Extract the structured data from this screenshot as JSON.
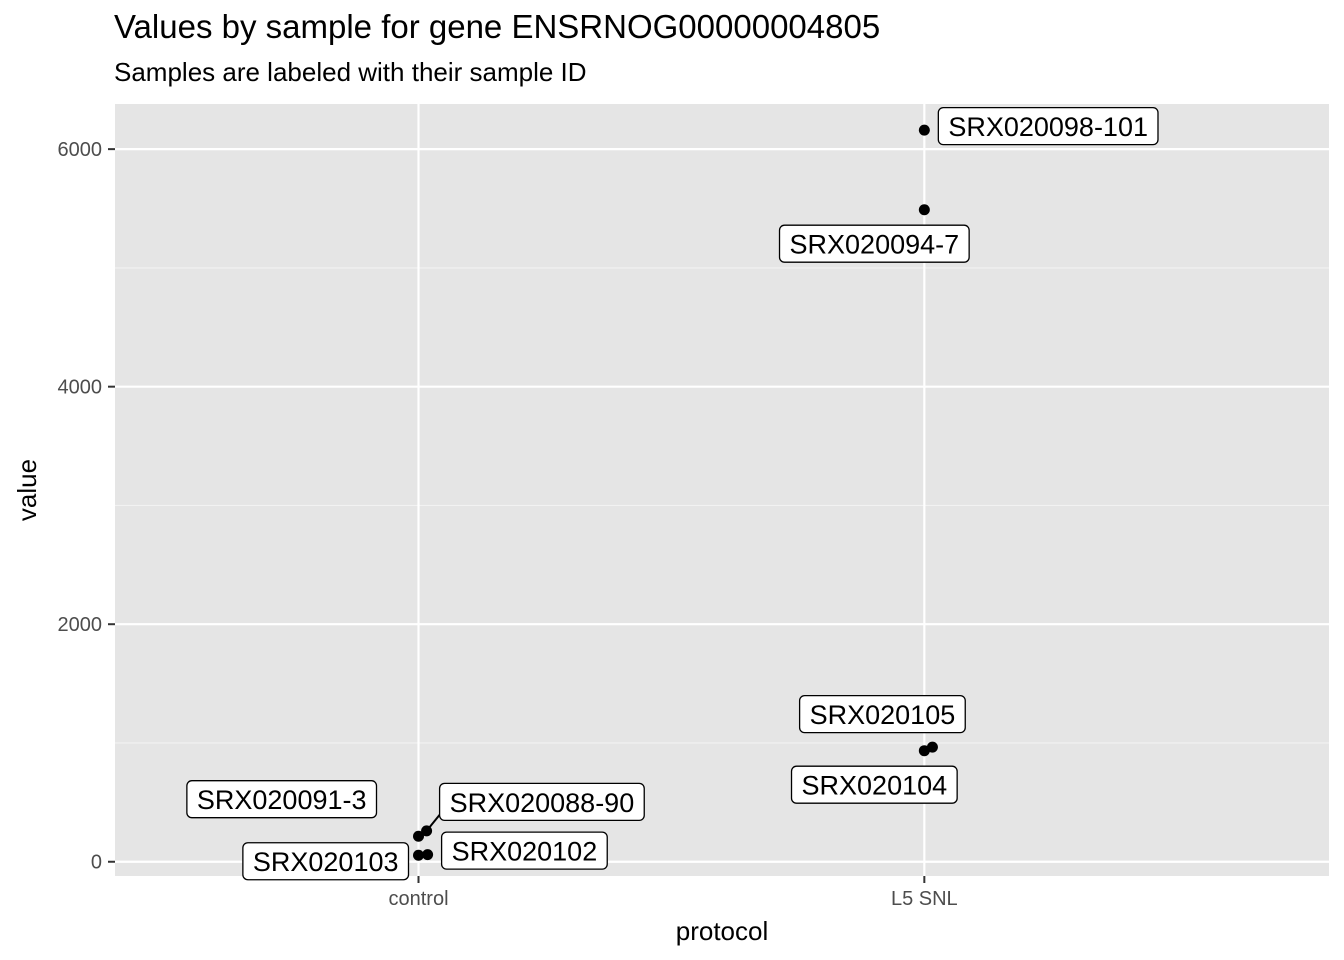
{
  "chart_data": {
    "type": "scatter",
    "title": "Values by sample for gene ENSRNOG00000004805",
    "subtitle": "Samples are labeled with their sample ID",
    "xlabel": "protocol",
    "ylabel": "value",
    "categories": [
      "control",
      "L5 SNL"
    ],
    "ylim": [
      -120,
      6380
    ],
    "yticks": [
      0,
      2000,
      4000,
      6000
    ],
    "grid": true,
    "points": [
      {
        "category": "control",
        "jitter": 0.0,
        "value": 215,
        "label": "SRX020091-3",
        "label_side": "upper-left"
      },
      {
        "category": "control",
        "jitter": 0.016,
        "value": 260,
        "label": "SRX020088-90",
        "label_side": "upper-right"
      },
      {
        "category": "control",
        "jitter": 0.0,
        "value": 55,
        "label": "SRX020103",
        "label_side": "left"
      },
      {
        "category": "control",
        "jitter": 0.018,
        "value": 60,
        "label": "SRX020102",
        "label_side": "right"
      },
      {
        "category": "L5 SNL",
        "jitter": 0.0,
        "value": 6160,
        "label": "SRX020098-101",
        "label_side": "right"
      },
      {
        "category": "L5 SNL",
        "jitter": 0.0,
        "value": 5490,
        "label": "SRX020094-7",
        "label_side": "below"
      },
      {
        "category": "L5 SNL",
        "jitter": 0.016,
        "value": 965,
        "label": "SRX020105",
        "label_side": "above"
      },
      {
        "category": "L5 SNL",
        "jitter": 0.0,
        "value": 935,
        "label": "SRX020104",
        "label_side": "below"
      }
    ]
  }
}
